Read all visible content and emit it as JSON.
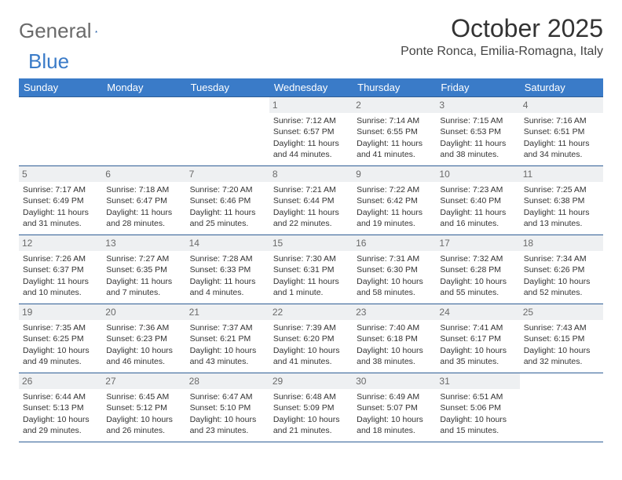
{
  "brand": {
    "word1": "General",
    "word2": "Blue",
    "text_color": "#6a6a6a",
    "accent_color": "#3a7bc8"
  },
  "title": "October 2025",
  "location": "Ponte Ronca, Emilia-Romagna, Italy",
  "colors": {
    "header_bg": "#3a7bc8",
    "header_text": "#ffffff",
    "row_border": "#2f5e96",
    "daynum_bg": "#eef0f2",
    "daynum_text": "#6a6a6a",
    "body_text": "#333333",
    "page_bg": "#ffffff"
  },
  "day_headers": [
    "Sunday",
    "Monday",
    "Tuesday",
    "Wednesday",
    "Thursday",
    "Friday",
    "Saturday"
  ],
  "weeks": [
    [
      {
        "n": "",
        "l1": "",
        "l2": "",
        "l3": "",
        "l4": ""
      },
      {
        "n": "",
        "l1": "",
        "l2": "",
        "l3": "",
        "l4": ""
      },
      {
        "n": "",
        "l1": "",
        "l2": "",
        "l3": "",
        "l4": ""
      },
      {
        "n": "1",
        "l1": "Sunrise: 7:12 AM",
        "l2": "Sunset: 6:57 PM",
        "l3": "Daylight: 11 hours",
        "l4": "and 44 minutes."
      },
      {
        "n": "2",
        "l1": "Sunrise: 7:14 AM",
        "l2": "Sunset: 6:55 PM",
        "l3": "Daylight: 11 hours",
        "l4": "and 41 minutes."
      },
      {
        "n": "3",
        "l1": "Sunrise: 7:15 AM",
        "l2": "Sunset: 6:53 PM",
        "l3": "Daylight: 11 hours",
        "l4": "and 38 minutes."
      },
      {
        "n": "4",
        "l1": "Sunrise: 7:16 AM",
        "l2": "Sunset: 6:51 PM",
        "l3": "Daylight: 11 hours",
        "l4": "and 34 minutes."
      }
    ],
    [
      {
        "n": "5",
        "l1": "Sunrise: 7:17 AM",
        "l2": "Sunset: 6:49 PM",
        "l3": "Daylight: 11 hours",
        "l4": "and 31 minutes."
      },
      {
        "n": "6",
        "l1": "Sunrise: 7:18 AM",
        "l2": "Sunset: 6:47 PM",
        "l3": "Daylight: 11 hours",
        "l4": "and 28 minutes."
      },
      {
        "n": "7",
        "l1": "Sunrise: 7:20 AM",
        "l2": "Sunset: 6:46 PM",
        "l3": "Daylight: 11 hours",
        "l4": "and 25 minutes."
      },
      {
        "n": "8",
        "l1": "Sunrise: 7:21 AM",
        "l2": "Sunset: 6:44 PM",
        "l3": "Daylight: 11 hours",
        "l4": "and 22 minutes."
      },
      {
        "n": "9",
        "l1": "Sunrise: 7:22 AM",
        "l2": "Sunset: 6:42 PM",
        "l3": "Daylight: 11 hours",
        "l4": "and 19 minutes."
      },
      {
        "n": "10",
        "l1": "Sunrise: 7:23 AM",
        "l2": "Sunset: 6:40 PM",
        "l3": "Daylight: 11 hours",
        "l4": "and 16 minutes."
      },
      {
        "n": "11",
        "l1": "Sunrise: 7:25 AM",
        "l2": "Sunset: 6:38 PM",
        "l3": "Daylight: 11 hours",
        "l4": "and 13 minutes."
      }
    ],
    [
      {
        "n": "12",
        "l1": "Sunrise: 7:26 AM",
        "l2": "Sunset: 6:37 PM",
        "l3": "Daylight: 11 hours",
        "l4": "and 10 minutes."
      },
      {
        "n": "13",
        "l1": "Sunrise: 7:27 AM",
        "l2": "Sunset: 6:35 PM",
        "l3": "Daylight: 11 hours",
        "l4": "and 7 minutes."
      },
      {
        "n": "14",
        "l1": "Sunrise: 7:28 AM",
        "l2": "Sunset: 6:33 PM",
        "l3": "Daylight: 11 hours",
        "l4": "and 4 minutes."
      },
      {
        "n": "15",
        "l1": "Sunrise: 7:30 AM",
        "l2": "Sunset: 6:31 PM",
        "l3": "Daylight: 11 hours",
        "l4": "and 1 minute."
      },
      {
        "n": "16",
        "l1": "Sunrise: 7:31 AM",
        "l2": "Sunset: 6:30 PM",
        "l3": "Daylight: 10 hours",
        "l4": "and 58 minutes."
      },
      {
        "n": "17",
        "l1": "Sunrise: 7:32 AM",
        "l2": "Sunset: 6:28 PM",
        "l3": "Daylight: 10 hours",
        "l4": "and 55 minutes."
      },
      {
        "n": "18",
        "l1": "Sunrise: 7:34 AM",
        "l2": "Sunset: 6:26 PM",
        "l3": "Daylight: 10 hours",
        "l4": "and 52 minutes."
      }
    ],
    [
      {
        "n": "19",
        "l1": "Sunrise: 7:35 AM",
        "l2": "Sunset: 6:25 PM",
        "l3": "Daylight: 10 hours",
        "l4": "and 49 minutes."
      },
      {
        "n": "20",
        "l1": "Sunrise: 7:36 AM",
        "l2": "Sunset: 6:23 PM",
        "l3": "Daylight: 10 hours",
        "l4": "and 46 minutes."
      },
      {
        "n": "21",
        "l1": "Sunrise: 7:37 AM",
        "l2": "Sunset: 6:21 PM",
        "l3": "Daylight: 10 hours",
        "l4": "and 43 minutes."
      },
      {
        "n": "22",
        "l1": "Sunrise: 7:39 AM",
        "l2": "Sunset: 6:20 PM",
        "l3": "Daylight: 10 hours",
        "l4": "and 41 minutes."
      },
      {
        "n": "23",
        "l1": "Sunrise: 7:40 AM",
        "l2": "Sunset: 6:18 PM",
        "l3": "Daylight: 10 hours",
        "l4": "and 38 minutes."
      },
      {
        "n": "24",
        "l1": "Sunrise: 7:41 AM",
        "l2": "Sunset: 6:17 PM",
        "l3": "Daylight: 10 hours",
        "l4": "and 35 minutes."
      },
      {
        "n": "25",
        "l1": "Sunrise: 7:43 AM",
        "l2": "Sunset: 6:15 PM",
        "l3": "Daylight: 10 hours",
        "l4": "and 32 minutes."
      }
    ],
    [
      {
        "n": "26",
        "l1": "Sunrise: 6:44 AM",
        "l2": "Sunset: 5:13 PM",
        "l3": "Daylight: 10 hours",
        "l4": "and 29 minutes."
      },
      {
        "n": "27",
        "l1": "Sunrise: 6:45 AM",
        "l2": "Sunset: 5:12 PM",
        "l3": "Daylight: 10 hours",
        "l4": "and 26 minutes."
      },
      {
        "n": "28",
        "l1": "Sunrise: 6:47 AM",
        "l2": "Sunset: 5:10 PM",
        "l3": "Daylight: 10 hours",
        "l4": "and 23 minutes."
      },
      {
        "n": "29",
        "l1": "Sunrise: 6:48 AM",
        "l2": "Sunset: 5:09 PM",
        "l3": "Daylight: 10 hours",
        "l4": "and 21 minutes."
      },
      {
        "n": "30",
        "l1": "Sunrise: 6:49 AM",
        "l2": "Sunset: 5:07 PM",
        "l3": "Daylight: 10 hours",
        "l4": "and 18 minutes."
      },
      {
        "n": "31",
        "l1": "Sunrise: 6:51 AM",
        "l2": "Sunset: 5:06 PM",
        "l3": "Daylight: 10 hours",
        "l4": "and 15 minutes."
      },
      {
        "n": "",
        "l1": "",
        "l2": "",
        "l3": "",
        "l4": ""
      }
    ]
  ]
}
